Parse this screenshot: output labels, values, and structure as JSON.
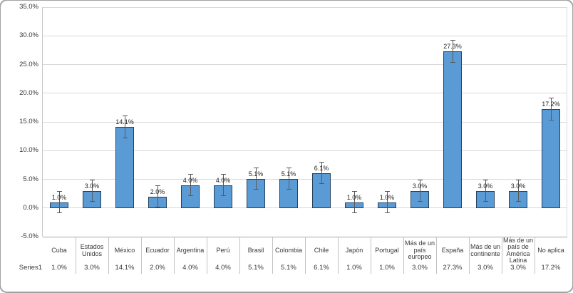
{
  "window": {
    "background": "#ffffff",
    "corner_border_color": "#a2a2a2"
  },
  "chart_data": {
    "type": "bar",
    "title": "",
    "legend_position": "none",
    "grid": true,
    "categories": [
      "Cuba",
      "Estados Unidos",
      "México",
      "Ecuador",
      "Argentina",
      "Perú",
      "Brasil",
      "Colombia",
      "Chile",
      "Japón",
      "Portugal",
      "Más de un país europeo",
      "España",
      "Más de un continente",
      "Más de un país de América Latina",
      "No aplica"
    ],
    "series": [
      {
        "name": "Series1",
        "values": [
          1.0,
          3.0,
          14.1,
          2.0,
          4.0,
          4.0,
          5.1,
          5.1,
          6.1,
          1.0,
          1.0,
          3.0,
          27.3,
          3.0,
          3.0,
          17.2
        ]
      }
    ],
    "data_labels": [
      "1.0%",
      "3.0%",
      "14.1%",
      "2.0%",
      "4.0%",
      "4.0%",
      "5.1%",
      "5.1%",
      "6.1%",
      "1.0%",
      "1.0%",
      "3.0%",
      "27.3%",
      "3.0%",
      "3.0%",
      "17.2%"
    ],
    "error_bars": {
      "plus": 1.9,
      "minus": 1.9
    },
    "ylim": [
      -5,
      35
    ],
    "ytick_step": 5,
    "ytick_labels": [
      "35.0%",
      "30.0%",
      "25.0%",
      "20.0%",
      "15.0%",
      "10.0%",
      "5.0%",
      "0.0%",
      "-5.0%"
    ],
    "data_table": {
      "row_label": "Series1",
      "values": [
        "1.0%",
        "3.0%",
        "14.1%",
        "2.0%",
        "4.0%",
        "4.0%",
        "5.1%",
        "5.1%",
        "6.1%",
        "1.0%",
        "1.0%",
        "3.0%",
        "27.3%",
        "3.0%",
        "3.0%",
        "17.2%"
      ]
    },
    "colors": {
      "bar_fill": "#5b9bd5",
      "bar_border": "#22405e",
      "error_bar": "#595959",
      "gridline": "#d9d9d9",
      "axis_line": "#c6c6c6",
      "plot_bottom_line": "#a6a6a6",
      "table_separator": "#c2c2c2",
      "text": "#383838"
    }
  }
}
